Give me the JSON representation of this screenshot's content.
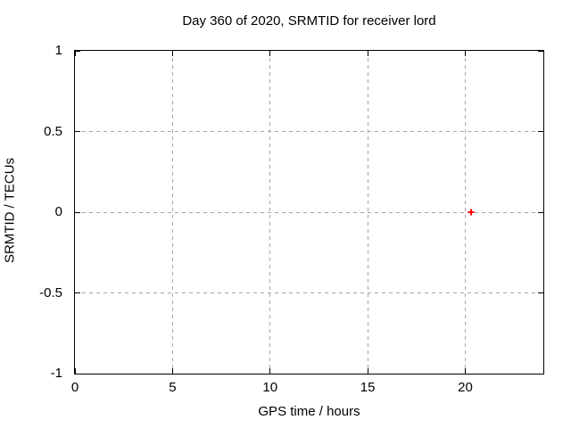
{
  "chart_data": {
    "type": "scatter",
    "title": "Day 360 of 2020, SRMTID for receiver lord",
    "xlabel": "GPS time / hours",
    "ylabel": "SRMTID / TECUs",
    "xlim": [
      0,
      24
    ],
    "ylim": [
      -1,
      1
    ],
    "xticks": {
      "values": [
        0,
        5,
        10,
        15,
        20
      ],
      "labels": [
        "0",
        "5",
        "10",
        "15",
        "20"
      ]
    },
    "yticks": {
      "values": [
        1,
        0.5,
        0,
        -0.5,
        -1
      ],
      "labels": [
        "1",
        "0.5",
        "0",
        "-0.5",
        "-1"
      ]
    },
    "grid": true,
    "legend_position": "none",
    "series": [
      {
        "marker": "plus",
        "color": "#ff0000",
        "points": [
          {
            "x": 20.3,
            "y": 0.0
          }
        ]
      }
    ]
  },
  "colors": {
    "background": "#ffffff",
    "axis": "#000000",
    "grid": "#a6a6a6",
    "text": "#000000",
    "marker": "#ff0000"
  }
}
